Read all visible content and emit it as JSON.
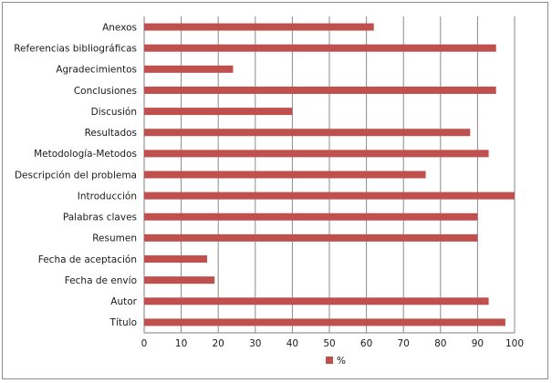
{
  "chart_data": {
    "type": "bar",
    "orientation": "horizontal",
    "categories": [
      "Anexos",
      "Referencias bibliográficas",
      "Agradecimientos",
      "Conclusiones",
      "Discusión",
      "Resultados",
      "Metodología-Metodos",
      "Descripción del problema",
      "Introducción",
      "Palabras claves",
      "Resumen",
      "Fecha de aceptación",
      "Fecha de envío",
      "Autor",
      "Título"
    ],
    "series": [
      {
        "name": "%",
        "color": "#c0504d",
        "values": [
          62,
          95,
          24,
          95,
          40,
          88,
          93,
          76,
          100,
          90,
          90,
          17,
          19,
          93,
          97.5
        ]
      }
    ],
    "xlim": [
      0,
      100
    ],
    "x_ticks": [
      0,
      10,
      20,
      30,
      40,
      50,
      60,
      70,
      80,
      90,
      100
    ],
    "grid": "vertical",
    "legend": "bottom"
  }
}
